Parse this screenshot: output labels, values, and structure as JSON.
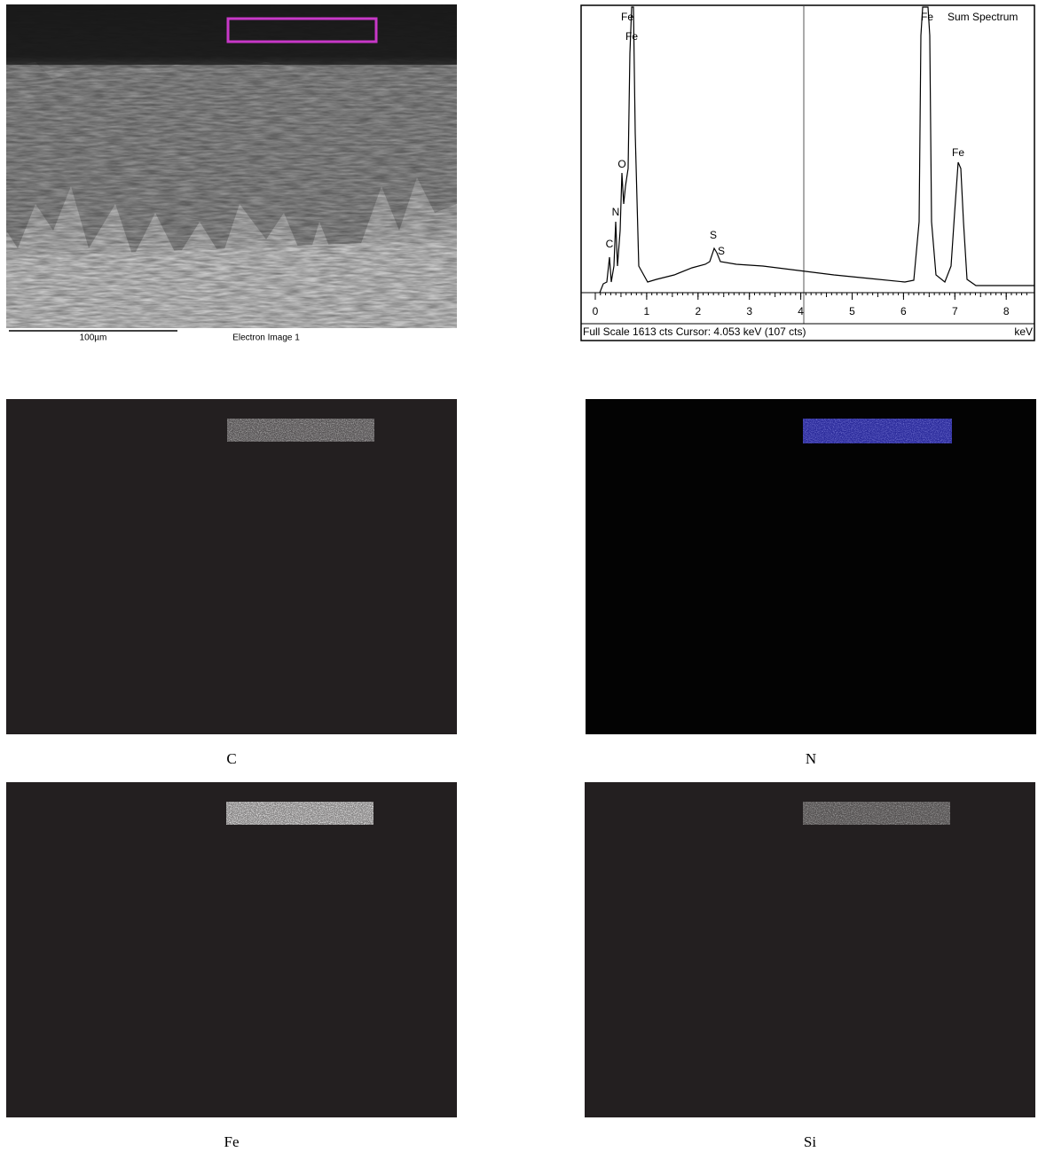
{
  "sem_image": {
    "scale_bar": "100µm",
    "caption": "Electron Image 1"
  },
  "spectrum": {
    "title": "Sum Spectrum",
    "peak_labels": [
      "Fe",
      "Fe",
      "O",
      "N",
      "C",
      "S",
      "S",
      "Fe",
      "Fe"
    ],
    "x_ticks": [
      0,
      1,
      2,
      3,
      4,
      5,
      6,
      7,
      8
    ],
    "x_unit": "keV",
    "status": "Full Scale 1613 cts  Cursor: 4.053 keV (107 cts)"
  },
  "maps": [
    {
      "label": "C"
    },
    {
      "label": "N"
    },
    {
      "label": "Fe"
    },
    {
      "label": "Si"
    }
  ]
}
